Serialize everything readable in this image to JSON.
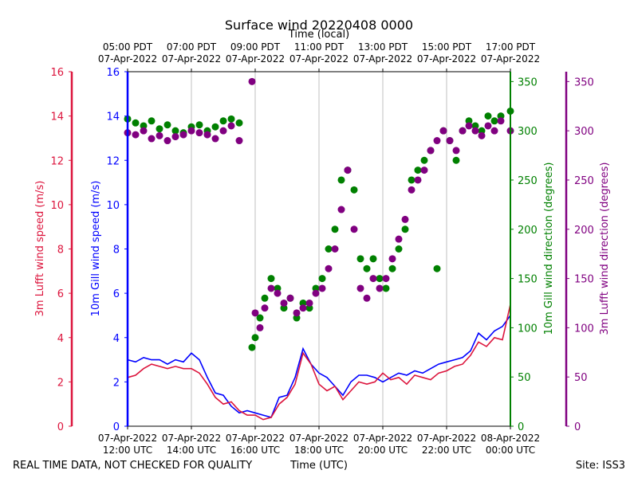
{
  "chart_data": {
    "type": "line+scatter",
    "title": "Surface wind 20220408 0000",
    "top_axis_label": "Time (local)",
    "top_ticks": [
      {
        "hour": 0,
        "line1": "05:00 PDT",
        "line2": "07-Apr-2022"
      },
      {
        "hour": 2,
        "line1": "07:00 PDT",
        "line2": "07-Apr-2022"
      },
      {
        "hour": 4,
        "line1": "09:00 PDT",
        "line2": "07-Apr-2022"
      },
      {
        "hour": 6,
        "line1": "11:00 PDT",
        "line2": "07-Apr-2022"
      },
      {
        "hour": 8,
        "line1": "13:00 PDT",
        "line2": "07-Apr-2022"
      },
      {
        "hour": 10,
        "line1": "15:00 PDT",
        "line2": "07-Apr-2022"
      },
      {
        "hour": 12,
        "line1": "17:00 PDT",
        "line2": "07-Apr-2022"
      }
    ],
    "bottom_ticks": [
      {
        "hour": 0,
        "line1": "07-Apr-2022",
        "line2": "12:00 UTC"
      },
      {
        "hour": 2,
        "line1": "07-Apr-2022",
        "line2": "14:00 UTC"
      },
      {
        "hour": 4,
        "line1": "07-Apr-2022",
        "line2": "16:00 UTC"
      },
      {
        "hour": 6,
        "line1": "07-Apr-2022",
        "line2": "18:00 UTC"
      },
      {
        "hour": 8,
        "line1": "07-Apr-2022",
        "line2": "20:00 UTC"
      },
      {
        "hour": 10,
        "line1": "07-Apr-2022",
        "line2": "22:00 UTC"
      },
      {
        "hour": 12,
        "line1": "08-Apr-2022",
        "line2": "00:00 UTC"
      }
    ],
    "xlabel": "Time (UTC)",
    "x_unit": "hours since 2022-04-07 12:00 UTC",
    "xlim": [
      0,
      12
    ],
    "grid": "vertical",
    "speed_ylim": [
      0,
      16
    ],
    "speed_ticks": [
      0,
      2,
      4,
      6,
      8,
      10,
      12,
      14,
      16
    ],
    "direction_ylim": [
      0,
      360
    ],
    "direction_ticks": [
      0,
      50,
      100,
      150,
      200,
      250,
      300,
      350
    ],
    "axes": {
      "lufft_speed": {
        "label": "3m Lufft wind speed (m/s)",
        "color": "#dc143c"
      },
      "gill_speed": {
        "label": "10m Gill wind speed (m/s)",
        "color": "#0000ff"
      },
      "gill_direction": {
        "label": "10m Gill wind direction (degrees)",
        "color": "#008000"
      },
      "lufft_direction": {
        "label": "3m Lufft wind direction (degrees)",
        "color": "#800080"
      }
    },
    "series": [
      {
        "name": "10m Gill wind speed",
        "kind": "line",
        "axis": "gill_speed",
        "color": "#0000ff",
        "x": [
          0,
          0.25,
          0.5,
          0.75,
          1,
          1.25,
          1.5,
          1.75,
          2,
          2.25,
          2.5,
          2.75,
          3,
          3.25,
          3.5,
          3.75,
          4,
          4.25,
          4.5,
          4.75,
          5,
          5.25,
          5.5,
          5.75,
          6,
          6.25,
          6.5,
          6.75,
          7,
          7.25,
          7.5,
          7.75,
          8,
          8.25,
          8.5,
          8.75,
          9,
          9.25,
          9.5,
          9.75,
          10,
          10.25,
          10.5,
          10.75,
          11,
          11.25,
          11.5,
          11.75,
          12
        ],
        "y": [
          3.0,
          2.9,
          3.1,
          3.0,
          3.0,
          2.8,
          3.0,
          2.9,
          3.3,
          3.0,
          2.2,
          1.5,
          1.4,
          0.9,
          0.6,
          0.7,
          0.6,
          0.5,
          0.4,
          1.3,
          1.4,
          2.2,
          3.5,
          2.8,
          2.4,
          2.2,
          1.8,
          1.4,
          2.0,
          2.3,
          2.3,
          2.2,
          2.0,
          2.2,
          2.4,
          2.3,
          2.5,
          2.4,
          2.6,
          2.8,
          2.9,
          3.0,
          3.1,
          3.4,
          4.2,
          3.9,
          4.3,
          4.5,
          5.0
        ]
      },
      {
        "name": "3m Lufft wind speed",
        "kind": "line",
        "axis": "lufft_speed",
        "color": "#dc143c",
        "x": [
          0,
          0.25,
          0.5,
          0.75,
          1,
          1.25,
          1.5,
          1.75,
          2,
          2.25,
          2.5,
          2.75,
          3,
          3.25,
          3.5,
          3.75,
          4,
          4.25,
          4.5,
          4.75,
          5,
          5.25,
          5.5,
          5.75,
          6,
          6.25,
          6.5,
          6.75,
          7,
          7.25,
          7.5,
          7.75,
          8,
          8.25,
          8.5,
          8.75,
          9,
          9.25,
          9.5,
          9.75,
          10,
          10.25,
          10.5,
          10.75,
          11,
          11.25,
          11.5,
          11.75,
          12
        ],
        "y": [
          2.2,
          2.3,
          2.6,
          2.8,
          2.7,
          2.6,
          2.7,
          2.6,
          2.6,
          2.4,
          1.9,
          1.3,
          1.0,
          1.1,
          0.7,
          0.5,
          0.5,
          0.3,
          0.4,
          1.0,
          1.3,
          1.9,
          3.3,
          2.8,
          1.9,
          1.6,
          1.8,
          1.2,
          1.6,
          2.0,
          1.9,
          2.0,
          2.4,
          2.1,
          2.2,
          1.9,
          2.3,
          2.2,
          2.1,
          2.4,
          2.5,
          2.7,
          2.8,
          3.2,
          3.8,
          3.6,
          4.0,
          3.9,
          5.5
        ]
      },
      {
        "name": "10m Gill wind direction",
        "kind": "scatter",
        "axis": "gill_direction",
        "color": "#008000",
        "x": [
          0,
          0.25,
          0.5,
          0.75,
          1,
          1.25,
          1.5,
          1.75,
          2,
          2.25,
          2.5,
          2.75,
          3,
          3.25,
          3.5,
          3.9,
          4.0,
          4.15,
          4.3,
          4.5,
          4.7,
          4.9,
          5.1,
          5.3,
          5.5,
          5.7,
          5.9,
          6.1,
          6.3,
          6.5,
          6.7,
          6.9,
          7.1,
          7.3,
          7.5,
          7.7,
          7.9,
          8.1,
          8.3,
          8.5,
          8.7,
          8.9,
          9.1,
          9.3,
          9.5,
          9.7,
          9.9,
          10.1,
          10.3,
          10.5,
          10.7,
          10.9,
          11.1,
          11.3,
          11.5,
          11.7,
          12
        ],
        "y": [
          312,
          308,
          305,
          310,
          302,
          306,
          300,
          298,
          304,
          306,
          300,
          304,
          310,
          312,
          308,
          80,
          90,
          110,
          130,
          150,
          140,
          120,
          130,
          110,
          125,
          120,
          140,
          150,
          180,
          200,
          250,
          260,
          240,
          170,
          160,
          170,
          150,
          140,
          160,
          180,
          200,
          250,
          260,
          270,
          280,
          160,
          300,
          290,
          270,
          300,
          310,
          305,
          300,
          315,
          310,
          315,
          320
        ]
      },
      {
        "name": "3m Lufft wind direction",
        "kind": "scatter",
        "axis": "lufft_direction",
        "color": "#800080",
        "x": [
          0,
          0.25,
          0.5,
          0.75,
          1,
          1.25,
          1.5,
          1.75,
          2,
          2.25,
          2.5,
          2.75,
          3,
          3.25,
          3.5,
          3.9,
          4.0,
          4.15,
          4.3,
          4.5,
          4.7,
          4.9,
          5.1,
          5.3,
          5.5,
          5.7,
          5.9,
          6.1,
          6.3,
          6.5,
          6.7,
          6.9,
          7.1,
          7.3,
          7.5,
          7.7,
          7.9,
          8.1,
          8.3,
          8.5,
          8.7,
          8.9,
          9.1,
          9.3,
          9.5,
          9.7,
          9.9,
          10.1,
          10.3,
          10.5,
          10.7,
          10.9,
          11.1,
          11.3,
          11.5,
          11.7,
          12
        ],
        "y": [
          298,
          296,
          300,
          292,
          295,
          290,
          294,
          296,
          300,
          298,
          296,
          292,
          300,
          305,
          290,
          350,
          115,
          100,
          120,
          140,
          135,
          125,
          130,
          115,
          120,
          125,
          135,
          140,
          160,
          180,
          220,
          260,
          200,
          140,
          130,
          150,
          140,
          150,
          170,
          190,
          210,
          240,
          250,
          260,
          280,
          290,
          300,
          290,
          280,
          300,
          305,
          300,
          295,
          305,
          300,
          310,
          300
        ]
      }
    ]
  },
  "footer": {
    "left_note": "REAL TIME DATA, NOT CHECKED FOR QUALITY",
    "site": "Site: ISS3"
  }
}
